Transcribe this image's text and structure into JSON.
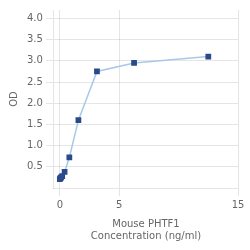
{
  "chart_data": {
    "type": "line",
    "x": [
      0.0,
      0.05,
      0.1,
      0.2,
      0.4,
      0.8,
      1.563,
      3.125,
      6.25,
      12.5
    ],
    "values": [
      0.212,
      0.232,
      0.252,
      0.28,
      0.38,
      0.72,
      1.6,
      2.75,
      2.95,
      3.1
    ],
    "color": "#a8c8e8",
    "colors": [
      "#2a4a8a",
      "#2a4a8a",
      "#2a4a8a",
      "#2a4a8a",
      "#2a4a8a",
      "#2a4a8a",
      "#2a4a8a",
      "#2a4a8a",
      "#2a4a8a",
      "#2a4a8a"
    ],
    "marker": "square",
    "xlabel": [
      "Mouse PHTF1",
      "Concentration (ng/ml)"
    ],
    "ylabel": "OD",
    "xlim": [
      -0.5,
      15
    ],
    "ylim": [
      0,
      4.2
    ],
    "xticks": [
      0,
      5,
      15
    ],
    "yticks": [
      0.5,
      {
        "value": 1.0,
        "label": "1.0"
      },
      1.5,
      {
        "value": 2.0,
        "label": "2.0"
      },
      2.5,
      {
        "value": 3.0,
        "label": "3.0"
      },
      3.5,
      {
        "value": 4.0,
        "label": "4.0"
      }
    ],
    "grid": true
  }
}
